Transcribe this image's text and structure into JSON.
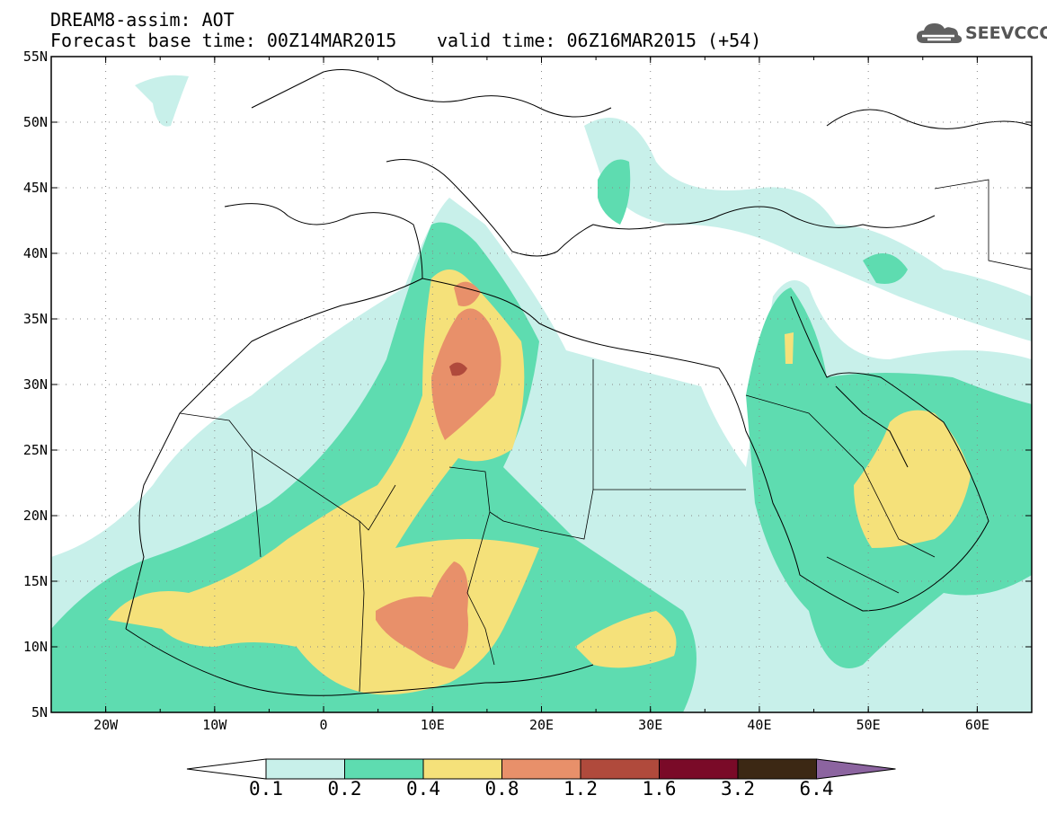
{
  "header": {
    "title": "DREAM8-assim: AOT",
    "base_time": "Forecast base time: 00Z14MAR2015",
    "valid_time": "valid time: 06Z16MAR2015 (+54)",
    "logo_text": "SEEVCCC",
    "logo_icon": "cloud-icon"
  },
  "map": {
    "projection": "lat-lon",
    "lon_range": [
      -25,
      65
    ],
    "lat_range": [
      5,
      55
    ],
    "lon_ticks": [
      "20W",
      "10W",
      "0",
      "10E",
      "20E",
      "30E",
      "40E",
      "50E",
      "60E"
    ],
    "lat_ticks": [
      "5N",
      "10N",
      "15N",
      "20N",
      "25N",
      "30N",
      "35N",
      "40N",
      "45N",
      "50N",
      "55N"
    ],
    "grid": "dotted",
    "field": "aerosol optical thickness",
    "legend_placement": "bottom"
  },
  "colorbar": {
    "levels": [
      "0.1",
      "0.2",
      "0.4",
      "0.8",
      "1.2",
      "1.6",
      "3.2",
      "6.4"
    ],
    "colors": [
      "#ffffff",
      "#c8f0ea",
      "#5edcb0",
      "#f5e17a",
      "#e8906a",
      "#b04a3c",
      "#7a0a28",
      "#3c2814",
      "#8c64a0"
    ]
  }
}
